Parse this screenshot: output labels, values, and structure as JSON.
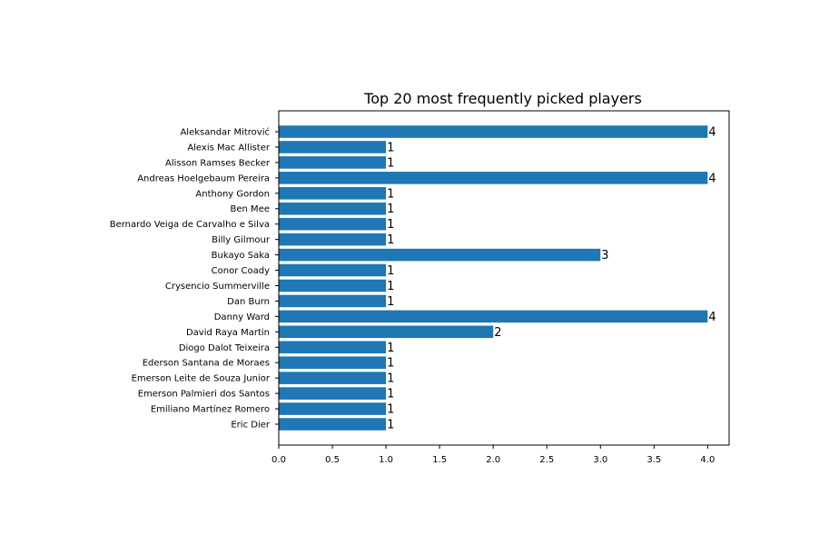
{
  "chart_data": {
    "type": "bar",
    "orientation": "horizontal",
    "title": "Top 20 most frequently picked players",
    "xlabel": "",
    "ylabel": "",
    "categories": [
      "Aleksandar Mitrović",
      "Alexis Mac Allister",
      "Alisson Ramses Becker",
      "Andreas Hoelgebaum Pereira",
      "Anthony Gordon",
      "Ben Mee",
      "Bernardo Veiga de Carvalho e Silva",
      "Billy Gilmour",
      "Bukayo Saka",
      "Conor Coady",
      "Crysencio Summerville",
      "Dan Burn",
      "Danny Ward",
      "David Raya Martin",
      "Diogo Dalot Teixeira",
      "Ederson Santana de Moraes",
      "Emerson Leite de Souza Junior",
      "Emerson Palmieri dos Santos",
      "Emiliano Martínez Romero",
      "Eric Dier"
    ],
    "values": [
      4,
      1,
      1,
      4,
      1,
      1,
      1,
      1,
      3,
      1,
      1,
      1,
      4,
      2,
      1,
      1,
      1,
      1,
      1,
      1
    ],
    "data_labels": [
      "4",
      "1",
      "1",
      "4",
      "1",
      "1",
      "1",
      "1",
      "3",
      "1",
      "1",
      "1",
      "4",
      "2",
      "1",
      "1",
      "1",
      "1",
      "1",
      "1"
    ],
    "xlim": [
      0,
      4.2
    ],
    "xticks": [
      0.0,
      0.5,
      1.0,
      1.5,
      2.0,
      2.5,
      3.0,
      3.5,
      4.0
    ],
    "xtick_labels": [
      "0.0",
      "0.5",
      "1.0",
      "1.5",
      "2.0",
      "2.5",
      "3.0",
      "3.5",
      "4.0"
    ],
    "bar_color": "#1f77b4",
    "grid": false,
    "legend": "none"
  }
}
